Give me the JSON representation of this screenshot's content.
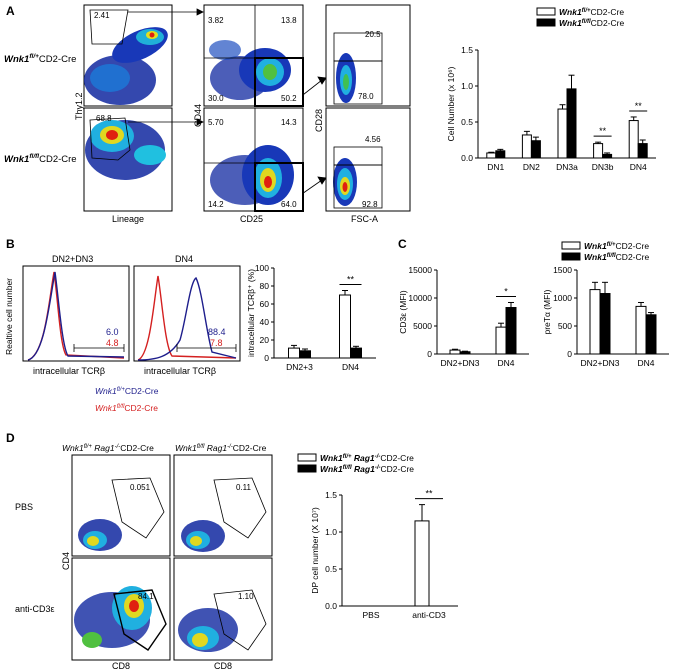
{
  "panels": {
    "A": {
      "letter": "A",
      "row_labels": [
        {
          "pre": "Wnk1",
          "sup": "fl/+",
          "post": "CD2-Cre"
        },
        {
          "pre": "Wnk1",
          "sup": "fl/fl",
          "post": "CD2-Cre"
        }
      ],
      "axes": {
        "thy": "Thy1.2",
        "lineage": "Lineage",
        "cd44": "CD44",
        "cd25": "CD25",
        "cd28": "CD28",
        "fsc": "FSC-A"
      },
      "gates": {
        "row1": {
          "lin": "2.41",
          "q_ul": "3.82",
          "q_ur": "13.8",
          "q_ll": "30.0",
          "q_lr": "50.2",
          "cd28_hi": "20.5",
          "cd28_lo": "78.0"
        },
        "row2": {
          "lin": "68.8",
          "q_ul": "5.70",
          "q_ur": "14.3",
          "q_ll": "14.2",
          "q_lr": "64.0",
          "cd28_hi": "4.56",
          "cd28_lo": "92.8"
        }
      }
    },
    "B": {
      "letter": "B",
      "hist_titles": [
        "DN2+DN3",
        "DN4"
      ],
      "y_label": "Realtive cell number",
      "x_label": "intracellular TCRβ",
      "hist_values": [
        {
          "blue": "6.0",
          "red": "4.8"
        },
        {
          "blue": "88.4",
          "red": "7.8"
        }
      ],
      "legend": [
        {
          "pre": "Wnk1",
          "sup": "fl/+",
          "post": "CD2-Cre",
          "color": "#1e1e8c"
        },
        {
          "pre": "Wnk1",
          "sup": "fl/fl",
          "post": "CD2-Cre",
          "color": "#d42020"
        }
      ]
    },
    "C": {
      "letter": "C"
    },
    "D": {
      "letter": "D",
      "col_titles": [
        {
          "pre": "Wnk1",
          "sup": "fl/+",
          "mid": " Rag1",
          "sup2": "-/-",
          "post": "CD2-Cre"
        },
        {
          "pre": "Wnk1",
          "sup": "fl/fl",
          "mid": " Rag1",
          "sup2": "-/-",
          "post": "CD2-Cre"
        }
      ],
      "row_labels": [
        "PBS",
        "anti-CD3ε"
      ],
      "axes": {
        "cd4": "CD4",
        "cd8": "CD8"
      },
      "gates": [
        [
          "0.051",
          "0.11"
        ],
        [
          "84.1",
          "1.10"
        ]
      ]
    }
  },
  "colors": {
    "blue": "#1e1e8c",
    "red": "#d42020",
    "bar_fill_black": "#000000",
    "bar_fill_white": "#ffffff"
  },
  "chart_data": [
    {
      "id": "A",
      "type": "bar",
      "categories": [
        "DN1",
        "DN2",
        "DN3a",
        "DN3b",
        "DN4"
      ],
      "ylabel": "Cell Number (x 10⁶)",
      "ylim": [
        0,
        1.5
      ],
      "yticks": [
        "0.0",
        "0.5",
        "1.0",
        "1.5"
      ],
      "series": [
        {
          "name": "Wnk1fl/+CD2-Cre",
          "values": [
            0.07,
            0.32,
            0.68,
            0.2,
            0.52
          ],
          "errors": [
            0.01,
            0.05,
            0.06,
            0.02,
            0.05
          ]
        },
        {
          "name": "Wnk1fl/flCD2-Cre",
          "values": [
            0.1,
            0.24,
            0.96,
            0.05,
            0.2
          ],
          "errors": [
            0.02,
            0.05,
            0.19,
            0.02,
            0.05
          ]
        }
      ],
      "significance": [
        {
          "category": "DN3b",
          "label": "**"
        },
        {
          "category": "DN4",
          "label": "**"
        }
      ],
      "legend_items": [
        {
          "pre": "Wnk1",
          "sup": "fl/+",
          "post": "CD2-Cre"
        },
        {
          "pre": "Wnk1",
          "sup": "fl/fl",
          "post": "CD2-Cre"
        }
      ]
    },
    {
      "id": "B",
      "type": "bar",
      "categories": [
        "DN2+3",
        "DN4"
      ],
      "ylabel": "intracellular TCRβ⁺ (%)",
      "ylim": [
        0,
        100
      ],
      "yticks": [
        "0",
        "20",
        "40",
        "60",
        "80",
        "100"
      ],
      "series": [
        {
          "name": "fl/+",
          "values": [
            11,
            70
          ],
          "errors": [
            3,
            5
          ]
        },
        {
          "name": "fl/fl",
          "values": [
            8,
            11
          ],
          "errors": [
            2,
            2
          ]
        }
      ],
      "significance": [
        {
          "category": "DN4",
          "label": "**"
        }
      ]
    },
    {
      "id": "C1",
      "type": "bar",
      "categories": [
        "DN2+DN3",
        "DN4"
      ],
      "ylabel": "CD3ε (MFI)",
      "ylim": [
        0,
        15000
      ],
      "yticks": [
        "0",
        "5000",
        "10000",
        "15000"
      ],
      "series": [
        {
          "name": "fl/+",
          "values": [
            700,
            4800
          ],
          "errors": [
            150,
            700
          ]
        },
        {
          "name": "fl/fl",
          "values": [
            400,
            8300
          ],
          "errors": [
            100,
            900
          ]
        }
      ],
      "significance": [
        {
          "category": "DN4",
          "label": "*"
        }
      ]
    },
    {
      "id": "C2",
      "type": "bar",
      "categories": [
        "DN2+DN3",
        "DN4"
      ],
      "ylabel": "preTα (MFI)",
      "ylim": [
        0,
        1500
      ],
      "yticks": [
        "0",
        "500",
        "1000",
        "1500"
      ],
      "series": [
        {
          "name": "fl/+",
          "values": [
            1150,
            850
          ],
          "errors": [
            130,
            70
          ]
        },
        {
          "name": "fl/fl",
          "values": [
            1080,
            700
          ],
          "errors": [
            200,
            40
          ]
        }
      ],
      "legend_items": [
        {
          "pre": "Wnk1",
          "sup": "fl/+",
          "post": "CD2-Cre"
        },
        {
          "pre": "Wnk1",
          "sup": "fl/fl",
          "post": "CD2-Cre"
        }
      ]
    },
    {
      "id": "D",
      "type": "bar",
      "categories": [
        "PBS",
        "anti-CD3"
      ],
      "ylabel": "DP cell number (X 10⁷)",
      "ylim": [
        0,
        1.5
      ],
      "yticks": [
        "0.0",
        "0.5",
        "1.0",
        "1.5"
      ],
      "series": [
        {
          "name": "fl/+ Rag1-/-",
          "values": [
            0,
            1.15
          ],
          "errors": [
            0,
            0.22
          ]
        },
        {
          "name": "fl/fl Rag1-/-",
          "values": [
            0,
            0
          ],
          "errors": [
            0,
            0
          ]
        }
      ],
      "significance": [
        {
          "category": "anti-CD3",
          "label": "**"
        }
      ],
      "legend_items": [
        {
          "pre": "Wnk1",
          "sup": "fl/+",
          "mid": " Rag1",
          "sup2": "-/-",
          "post": "CD2-Cre"
        },
        {
          "pre": "Wnk1",
          "sup": "fl/fl",
          "mid": " Rag1",
          "sup2": "-/-",
          "post": "CD2-Cre"
        }
      ]
    }
  ]
}
